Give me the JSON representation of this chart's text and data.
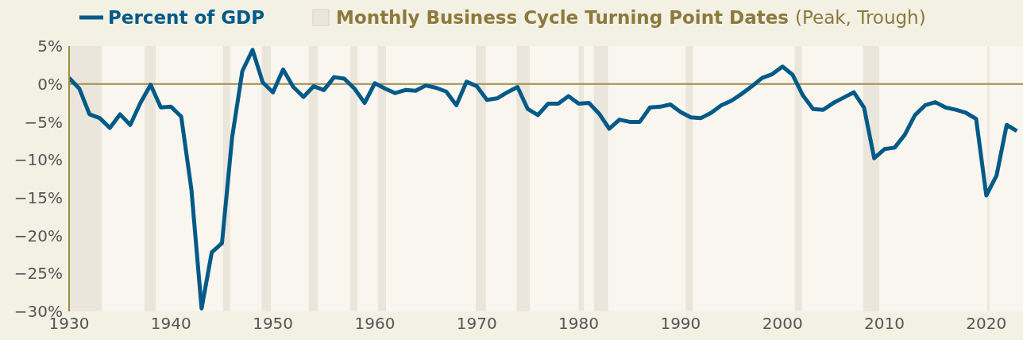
{
  "chart_data": {
    "type": "line",
    "x": [
      1930,
      1931,
      1932,
      1933,
      1934,
      1935,
      1936,
      1937,
      1938,
      1939,
      1940,
      1941,
      1942,
      1943,
      1944,
      1945,
      1946,
      1947,
      1948,
      1949,
      1950,
      1951,
      1952,
      1953,
      1954,
      1955,
      1956,
      1957,
      1958,
      1959,
      1960,
      1961,
      1962,
      1963,
      1964,
      1965,
      1966,
      1967,
      1968,
      1969,
      1970,
      1971,
      1972,
      1973,
      1974,
      1975,
      1976,
      1977,
      1978,
      1979,
      1980,
      1981,
      1982,
      1983,
      1984,
      1985,
      1986,
      1987,
      1988,
      1989,
      1990,
      1991,
      1992,
      1993,
      1994,
      1995,
      1996,
      1997,
      1998,
      1999,
      2000,
      2001,
      2002,
      2003,
      2004,
      2005,
      2006,
      2007,
      2008,
      2009,
      2010,
      2011,
      2012,
      2013,
      2014,
      2015,
      2016,
      2017,
      2018,
      2019,
      2020,
      2021,
      2022,
      2023
    ],
    "series": [
      {
        "name": "Percent of GDP",
        "color": "#005a87",
        "values": [
          0.8,
          -0.6,
          -4.0,
          -4.5,
          -5.8,
          -4.0,
          -5.4,
          -2.5,
          -0.1,
          -3.1,
          -3.0,
          -4.3,
          -13.9,
          -29.6,
          -22.2,
          -21.0,
          -7.0,
          1.7,
          4.5,
          0.2,
          -1.1,
          1.9,
          -0.4,
          -1.7,
          -0.3,
          -0.8,
          0.9,
          0.7,
          -0.6,
          -2.5,
          0.1,
          -0.6,
          -1.2,
          -0.8,
          -0.9,
          -0.2,
          -0.5,
          -1.0,
          -2.8,
          0.3,
          -0.3,
          -2.1,
          -1.9,
          -1.1,
          -0.4,
          -3.3,
          -4.1,
          -2.6,
          -2.6,
          -1.6,
          -2.6,
          -2.5,
          -3.9,
          -5.9,
          -4.7,
          -5.0,
          -5.0,
          -3.1,
          -3.0,
          -2.7,
          -3.7,
          -4.4,
          -4.5,
          -3.8,
          -2.8,
          -2.2,
          -1.3,
          -0.3,
          0.8,
          1.3,
          2.3,
          1.2,
          -1.5,
          -3.3,
          -3.4,
          -2.5,
          -1.8,
          -1.1,
          -3.1,
          -9.8,
          -8.6,
          -8.4,
          -6.7,
          -4.1,
          -2.8,
          -2.4,
          -3.1,
          -3.4,
          -3.8,
          -4.6,
          -14.7,
          -12.1,
          -5.4,
          -6.2
        ]
      }
    ],
    "xlim": [
      1930,
      2023.6
    ],
    "xticks": [
      1930,
      1940,
      1950,
      1960,
      1970,
      1980,
      1990,
      2000,
      2010,
      2020
    ],
    "ylim": [
      -30,
      5
    ],
    "yticks": [
      {
        "value": 5,
        "label": "5%"
      },
      {
        "value": 0,
        "label": "0%"
      },
      {
        "value": -5,
        "label": "−5%"
      },
      {
        "value": -10,
        "label": "−10%"
      },
      {
        "value": -15,
        "label": "−15%"
      },
      {
        "value": -20,
        "label": "−20%"
      },
      {
        "value": -25,
        "label": "−25%"
      },
      {
        "value": -30,
        "label": "−30%"
      }
    ],
    "ref_lines": [
      {
        "axis": "y",
        "value": 0,
        "color": "#a08a4a"
      }
    ],
    "bands": [
      {
        "axis": "x",
        "from": 1930,
        "to": 1933.2,
        "color": "#ebe6dc",
        "label": "Monthly Business Cycle Turning Point Dates (Peak, Trough)"
      },
      {
        "axis": "x",
        "from": 1937.4,
        "to": 1938.5,
        "color": "#ebe6dc"
      },
      {
        "axis": "x",
        "from": 1945.1,
        "to": 1945.8,
        "color": "#ebe6dc"
      },
      {
        "axis": "x",
        "from": 1948.9,
        "to": 1949.8,
        "color": "#ebe6dc"
      },
      {
        "axis": "x",
        "from": 1953.5,
        "to": 1954.4,
        "color": "#ebe6dc"
      },
      {
        "axis": "x",
        "from": 1957.6,
        "to": 1958.3,
        "color": "#ebe6dc"
      },
      {
        "axis": "x",
        "from": 1960.3,
        "to": 1961.1,
        "color": "#ebe6dc"
      },
      {
        "axis": "x",
        "from": 1969.9,
        "to": 1970.9,
        "color": "#ebe6dc"
      },
      {
        "axis": "x",
        "from": 1973.9,
        "to": 1975.2,
        "color": "#ebe6dc"
      },
      {
        "axis": "x",
        "from": 1980.0,
        "to": 1980.5,
        "color": "#ebe6dc"
      },
      {
        "axis": "x",
        "from": 1981.5,
        "to": 1982.9,
        "color": "#ebe6dc"
      },
      {
        "axis": "x",
        "from": 1990.5,
        "to": 1991.2,
        "color": "#ebe6dc"
      },
      {
        "axis": "x",
        "from": 2001.2,
        "to": 2001.9,
        "color": "#ebe6dc"
      },
      {
        "axis": "x",
        "from": 2007.9,
        "to": 2009.5,
        "color": "#ebe6dc"
      },
      {
        "axis": "x",
        "from": 2020.1,
        "to": 2020.3,
        "color": "#ebe6dc"
      }
    ],
    "legend": "top left",
    "grid": false,
    "marker": "none",
    "line_style": "solid"
  }
}
